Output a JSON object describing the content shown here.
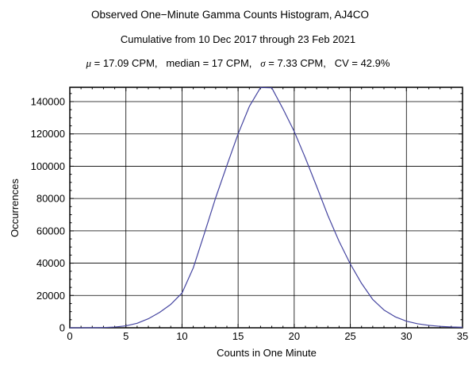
{
  "header": {
    "title": "Observed One−Minute Gamma Counts Histogram, AJ4CO",
    "subtitle": "Cumulative from 10 Dec 2017 through 23 Feb 2021",
    "stats_segments": [
      {
        "text": "μ",
        "italic": true
      },
      {
        "text": " = 17.09 CPM,   median = 17 CPM,   ",
        "italic": false
      },
      {
        "text": "σ",
        "italic": true
      },
      {
        "text": " = 7.33 CPM,   CV = 42.9%",
        "italic": false
      }
    ]
  },
  "chart_data": {
    "type": "line",
    "title": "Observed One−Minute Gamma Counts Histogram, AJ4CO",
    "subtitle": "Cumulative from 10 Dec 2017 through 23 Feb 2021",
    "annotations": "μ = 17.09 CPM, median = 17 CPM, σ = 7.33 CPM, CV = 42.9%",
    "xlabel": "Counts in One Minute",
    "ylabel": "Occurrences",
    "xlim": [
      0,
      35
    ],
    "ylim": [
      0,
      148842
    ],
    "xticks_major": [
      0,
      5,
      10,
      15,
      20,
      25,
      30,
      35
    ],
    "xtick_minor_step": 1,
    "yticks_major": [
      0,
      20000,
      40000,
      60000,
      80000,
      100000,
      120000,
      140000
    ],
    "ytick_minor_step": 5000,
    "grid": "major, solid black, frame box with inward ticks on all sides",
    "legend": "none",
    "line_color": "#4545a0",
    "frame_color": "#000000",
    "series": [
      {
        "name": "occurrences",
        "x": [
          0,
          1,
          2,
          3,
          4,
          5,
          6,
          7,
          8,
          9,
          10,
          11,
          12,
          13,
          14,
          15,
          16,
          17,
          18,
          19,
          20,
          21,
          22,
          23,
          24,
          25,
          26,
          27,
          28,
          29,
          30,
          31,
          32,
          33,
          34,
          35
        ],
        "y": [
          0,
          0,
          50,
          150,
          450,
          1200,
          2800,
          5600,
          9500,
          14500,
          21500,
          37000,
          58500,
          80500,
          100500,
          120000,
          137000,
          148700,
          148500,
          135500,
          121500,
          105000,
          87500,
          69500,
          53500,
          39500,
          27500,
          17500,
          11000,
          6800,
          4100,
          2500,
          1500,
          900,
          500,
          300
        ]
      }
    ]
  }
}
